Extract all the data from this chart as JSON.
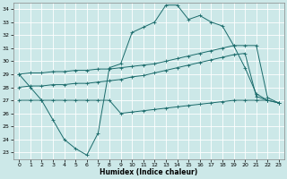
{
  "xlabel": "Humidex (Indice chaleur)",
  "background_color": "#cce8e8",
  "grid_color": "#ffffff",
  "line_color": "#1a6b6b",
  "xlim": [
    -0.5,
    23.5
  ],
  "ylim": [
    22.5,
    34.5
  ],
  "xticks": [
    0,
    1,
    2,
    3,
    4,
    5,
    6,
    7,
    8,
    9,
    10,
    11,
    12,
    13,
    14,
    15,
    16,
    17,
    18,
    19,
    20,
    21,
    22,
    23
  ],
  "yticks": [
    23,
    24,
    25,
    26,
    27,
    28,
    29,
    30,
    31,
    32,
    33,
    34
  ],
  "s1x": [
    0,
    1,
    2,
    3,
    4,
    5,
    6,
    7,
    8,
    9,
    10,
    11,
    12,
    13,
    14,
    15,
    16,
    17,
    18,
    19,
    20,
    21,
    22
  ],
  "s1y": [
    29.0,
    28.0,
    27.0,
    25.5,
    24.0,
    23.3,
    22.8,
    24.5,
    29.5,
    29.8,
    32.2,
    32.6,
    33.0,
    34.3,
    34.3,
    33.2,
    33.5,
    33.0,
    32.7,
    31.2,
    29.5,
    27.5,
    27.0
  ],
  "s2x": [
    0,
    1,
    2,
    3,
    4,
    5,
    6,
    7,
    8,
    9,
    10,
    11,
    12,
    13,
    14,
    15,
    16,
    17,
    18,
    19,
    20,
    21,
    22,
    23
  ],
  "s2y": [
    29.0,
    29.1,
    29.1,
    29.2,
    29.2,
    29.3,
    29.3,
    29.4,
    29.4,
    29.5,
    29.6,
    29.7,
    29.8,
    30.0,
    30.2,
    30.4,
    30.6,
    30.8,
    31.0,
    31.2,
    31.2,
    31.2,
    27.2,
    26.8
  ],
  "s3x": [
    0,
    1,
    2,
    3,
    4,
    5,
    6,
    7,
    8,
    9,
    10,
    11,
    12,
    13,
    14,
    15,
    16,
    17,
    18,
    19,
    20,
    21,
    22,
    23
  ],
  "s3y": [
    28.0,
    28.1,
    28.1,
    28.2,
    28.2,
    28.3,
    28.3,
    28.4,
    28.5,
    28.6,
    28.8,
    28.9,
    29.1,
    29.3,
    29.5,
    29.7,
    29.9,
    30.1,
    30.3,
    30.5,
    30.6,
    27.3,
    27.0,
    26.8
  ],
  "s4x": [
    0,
    1,
    2,
    3,
    4,
    5,
    6,
    7,
    8,
    9,
    10,
    11,
    12,
    13,
    14,
    15,
    16,
    17,
    18,
    19,
    20,
    21,
    22,
    23
  ],
  "s4y": [
    27.0,
    27.0,
    27.0,
    27.0,
    27.0,
    27.0,
    27.0,
    27.0,
    27.0,
    26.0,
    26.1,
    26.2,
    26.3,
    26.4,
    26.5,
    26.6,
    26.7,
    26.8,
    26.9,
    27.0,
    27.0,
    27.0,
    27.0,
    26.8
  ]
}
